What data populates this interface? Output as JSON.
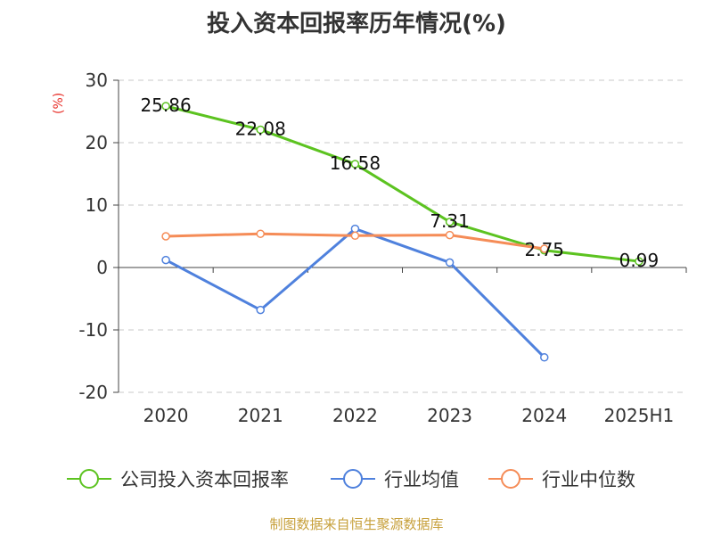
{
  "title": "投入资本回报率历年情况(%)",
  "unit_label": "(%)",
  "source": "制图数据来自恒生聚源数据库",
  "chart_data": {
    "type": "line",
    "categories": [
      "2020",
      "2021",
      "2022",
      "2023",
      "2024",
      "2025H1"
    ],
    "ylim": [
      -20,
      30
    ],
    "yticks": [
      -20,
      -10,
      0,
      10,
      20,
      30
    ],
    "yticks_labels": [
      "-20",
      "-10",
      "0",
      "10",
      "20",
      "30"
    ],
    "grid": true,
    "legend_position": "bottom",
    "series": [
      {
        "name": "公司投入资本回报率",
        "color": "#5cc320",
        "values": [
          25.86,
          22.08,
          16.58,
          7.31,
          2.75,
          0.99
        ],
        "labels": [
          "25.86",
          "22.08",
          "16.58",
          "7.31",
          "2.75",
          "0.99"
        ]
      },
      {
        "name": "行业均值",
        "color": "#4f81dd",
        "values": [
          1.2,
          -6.8,
          6.2,
          0.8,
          -14.4,
          null
        ]
      },
      {
        "name": "行业中位数",
        "color": "#f58c57",
        "values": [
          5.0,
          5.4,
          5.1,
          5.2,
          3.0,
          null
        ]
      }
    ]
  }
}
